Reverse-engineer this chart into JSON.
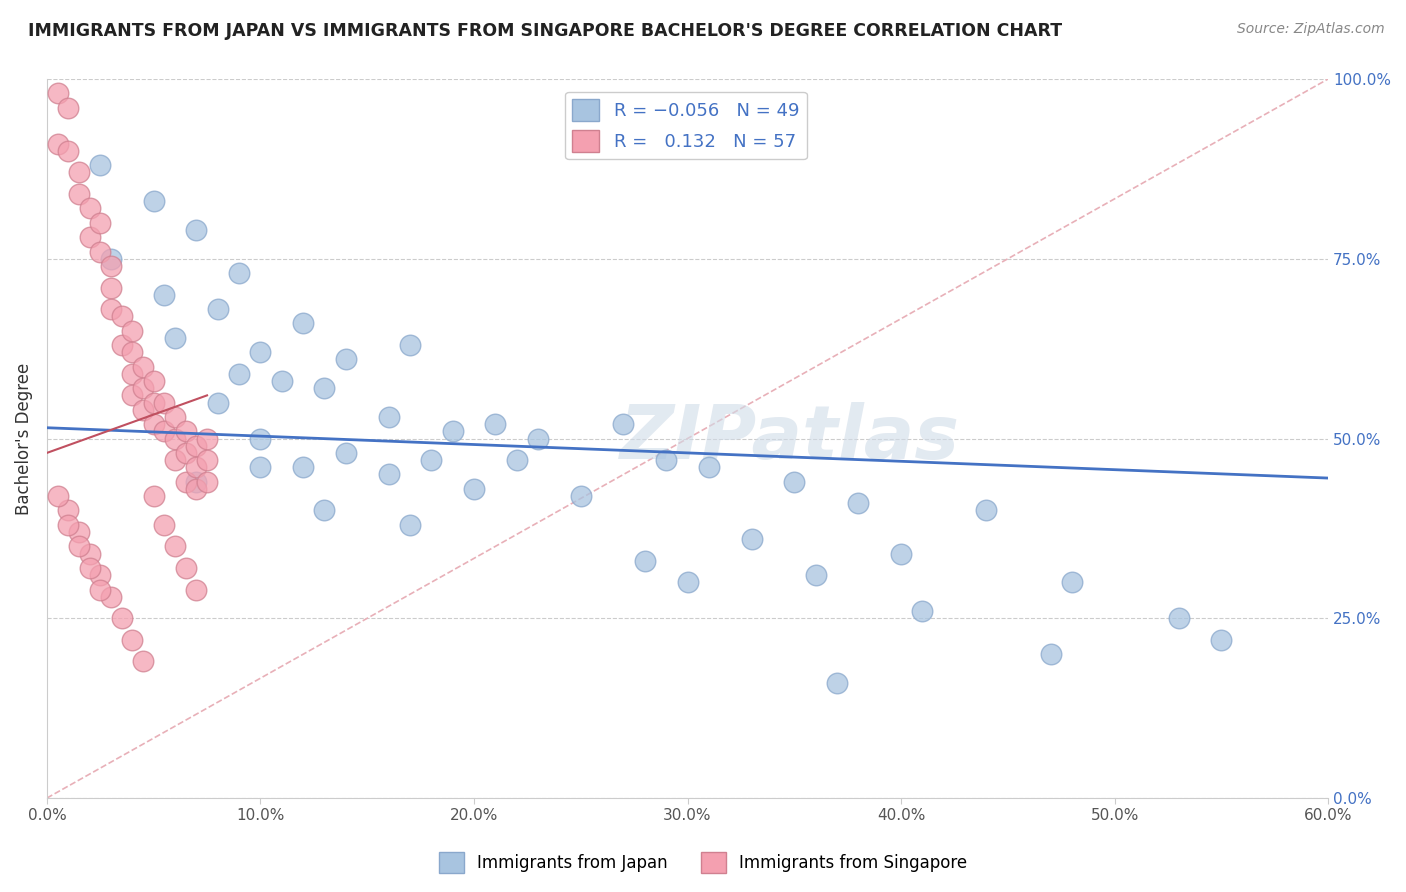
{
  "title": "IMMIGRANTS FROM JAPAN VS IMMIGRANTS FROM SINGAPORE BACHELOR'S DEGREE CORRELATION CHART",
  "source_text": "Source: ZipAtlas.com",
  "ylabel": "Bachelor's Degree",
  "xlim": [
    0.0,
    0.6
  ],
  "ylim": [
    0.0,
    1.0
  ],
  "xtick_labels": [
    "0.0%",
    "10.0%",
    "20.0%",
    "30.0%",
    "40.0%",
    "50.0%",
    "60.0%"
  ],
  "xtick_vals": [
    0.0,
    0.1,
    0.2,
    0.3,
    0.4,
    0.5,
    0.6
  ],
  "ytick_labels": [
    "0.0%",
    "25.0%",
    "50.0%",
    "75.0%",
    "100.0%"
  ],
  "ytick_vals": [
    0.0,
    0.25,
    0.5,
    0.75,
    1.0
  ],
  "japan_R": -0.056,
  "japan_N": 49,
  "singapore_R": 0.132,
  "singapore_N": 57,
  "japan_color": "#a8c4e0",
  "singapore_color": "#f4a0b0",
  "japan_line_color": "#4472c4",
  "singapore_line_color": "#c05060",
  "diagonal_color": "#e8b0b8",
  "watermark": "ZIPatlas",
  "japan_scatter_x": [
    0.025,
    0.05,
    0.07,
    0.03,
    0.09,
    0.055,
    0.08,
    0.12,
    0.06,
    0.1,
    0.14,
    0.09,
    0.11,
    0.17,
    0.13,
    0.08,
    0.16,
    0.21,
    0.1,
    0.19,
    0.23,
    0.14,
    0.18,
    0.12,
    0.27,
    0.07,
    0.22,
    0.31,
    0.16,
    0.2,
    0.35,
    0.25,
    0.13,
    0.29,
    0.38,
    0.17,
    0.44,
    0.33,
    0.4,
    0.28,
    0.36,
    0.48,
    0.41,
    0.53,
    0.3,
    0.55,
    0.47,
    0.37,
    0.1
  ],
  "japan_scatter_y": [
    0.88,
    0.83,
    0.79,
    0.75,
    0.73,
    0.7,
    0.68,
    0.66,
    0.64,
    0.62,
    0.61,
    0.59,
    0.58,
    0.63,
    0.57,
    0.55,
    0.53,
    0.52,
    0.5,
    0.51,
    0.5,
    0.48,
    0.47,
    0.46,
    0.52,
    0.44,
    0.47,
    0.46,
    0.45,
    0.43,
    0.44,
    0.42,
    0.4,
    0.47,
    0.41,
    0.38,
    0.4,
    0.36,
    0.34,
    0.33,
    0.31,
    0.3,
    0.26,
    0.25,
    0.3,
    0.22,
    0.2,
    0.16,
    0.46
  ],
  "singapore_scatter_x": [
    0.005,
    0.01,
    0.005,
    0.01,
    0.015,
    0.015,
    0.02,
    0.02,
    0.025,
    0.025,
    0.03,
    0.03,
    0.03,
    0.035,
    0.035,
    0.04,
    0.04,
    0.04,
    0.04,
    0.045,
    0.045,
    0.045,
    0.05,
    0.05,
    0.05,
    0.055,
    0.055,
    0.06,
    0.06,
    0.06,
    0.065,
    0.065,
    0.065,
    0.07,
    0.07,
    0.07,
    0.075,
    0.075,
    0.075,
    0.01,
    0.015,
    0.02,
    0.025,
    0.03,
    0.035,
    0.04,
    0.045,
    0.05,
    0.055,
    0.06,
    0.065,
    0.07,
    0.005,
    0.01,
    0.015,
    0.02,
    0.025
  ],
  "singapore_scatter_y": [
    0.98,
    0.96,
    0.91,
    0.9,
    0.87,
    0.84,
    0.82,
    0.78,
    0.8,
    0.76,
    0.74,
    0.71,
    0.68,
    0.67,
    0.63,
    0.65,
    0.62,
    0.59,
    0.56,
    0.6,
    0.57,
    0.54,
    0.58,
    0.55,
    0.52,
    0.55,
    0.51,
    0.53,
    0.5,
    0.47,
    0.51,
    0.48,
    0.44,
    0.49,
    0.46,
    0.43,
    0.5,
    0.47,
    0.44,
    0.4,
    0.37,
    0.34,
    0.31,
    0.28,
    0.25,
    0.22,
    0.19,
    0.42,
    0.38,
    0.35,
    0.32,
    0.29,
    0.42,
    0.38,
    0.35,
    0.32,
    0.29
  ],
  "japan_line_x": [
    0.0,
    0.6
  ],
  "japan_line_y": [
    0.515,
    0.445
  ],
  "singapore_line_x": [
    0.0,
    0.075
  ],
  "singapore_line_y": [
    0.48,
    0.56
  ],
  "diagonal_line_x": [
    0.0,
    0.6
  ],
  "diagonal_line_y": [
    0.0,
    1.0
  ]
}
